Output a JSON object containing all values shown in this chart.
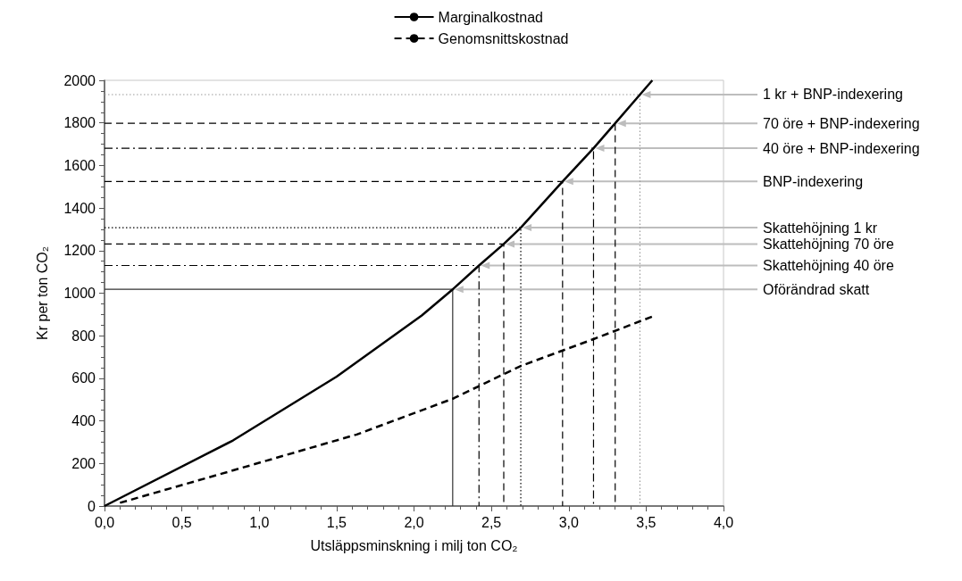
{
  "chart_data": {
    "type": "line",
    "xlabel": "Utsläppsminskning i milj ton CO₂",
    "ylabel": "Kr per ton CO₂",
    "xlim": [
      0,
      4
    ],
    "xticks": [
      {
        "value": 0,
        "label": "0,0"
      },
      {
        "value": 0.5,
        "label": "0,5"
      },
      {
        "value": 1,
        "label": "1,0"
      },
      {
        "value": 1.5,
        "label": "1,5"
      },
      {
        "value": 2,
        "label": "2,0"
      },
      {
        "value": 2.5,
        "label": "2,5"
      },
      {
        "value": 3,
        "label": "3,0"
      },
      {
        "value": 3.5,
        "label": "3,5"
      },
      {
        "value": 4,
        "label": "4,0"
      }
    ],
    "ylim": [
      0,
      2000
    ],
    "yticks": [
      0,
      200,
      400,
      600,
      800,
      1000,
      1200,
      1400,
      1600,
      1800,
      2000
    ],
    "grid": false,
    "legend": "top",
    "marker": "none",
    "series": [
      {
        "name": "Marginalkostnad",
        "color": "#000000",
        "line_style": "solid",
        "x": [
          0,
          0.83,
          1.5,
          2.05,
          2.25,
          2.42,
          2.58,
          2.69,
          2.96,
          3.16,
          3.3,
          3.46,
          3.54
        ],
        "values": [
          0,
          308,
          608,
          895,
          1018,
          1130,
          1231,
          1308,
          1525,
          1681,
          1798,
          1933,
          2000
        ]
      },
      {
        "name": "Genomsnittskostnad",
        "color": "#000000",
        "line_style": "dashed",
        "x": [
          0.1,
          0.8,
          1.63,
          2.25,
          2.69,
          3.16,
          3.55
        ],
        "values": [
          15,
          161,
          336,
          504,
          658,
          784,
          893
        ]
      },
      {
        "color": "#333333",
        "line_style": "solid",
        "x": [
          0,
          2.25,
          2.25
        ],
        "values": [
          1018,
          1018,
          0
        ]
      },
      {
        "color": "#000000",
        "line_style": "dashdot",
        "x": [
          0,
          2.42,
          2.42
        ],
        "values": [
          1130,
          1130,
          0
        ]
      },
      {
        "color": "#000000",
        "line_style": "dashed",
        "x": [
          0,
          2.58,
          2.58
        ],
        "values": [
          1231,
          1231,
          0
        ]
      },
      {
        "color": "#000000",
        "line_style": "dotted",
        "x": [
          0,
          2.69,
          2.69
        ],
        "values": [
          1308,
          1308,
          0
        ]
      },
      {
        "color": "#000000",
        "line_style": "dashed",
        "x": [
          0,
          2.96,
          2.96
        ],
        "values": [
          1525,
          1525,
          0
        ]
      },
      {
        "color": "#000000",
        "line_style": "dashdot",
        "x": [
          0,
          3.16,
          3.16
        ],
        "values": [
          1681,
          1681,
          0
        ]
      },
      {
        "color": "#000000",
        "line_style": "dashed",
        "x": [
          0,
          3.3,
          3.3
        ],
        "values": [
          1798,
          1798,
          0
        ]
      },
      {
        "color": "#999999",
        "line_style": "dotted",
        "x": [
          0,
          3.46,
          3.46
        ],
        "values": [
          1933,
          1933,
          0
        ]
      }
    ],
    "annotations": [
      {
        "text": "1 kr + BNP-indexering",
        "x": 3.46,
        "y": 1933
      },
      {
        "text": "70 öre + BNP-indexering",
        "x": 3.3,
        "y": 1798
      },
      {
        "text": "40 öre + BNP-indexering",
        "x": 3.16,
        "y": 1681
      },
      {
        "text": "BNP-indexering",
        "x": 2.96,
        "y": 1525
      },
      {
        "text": "Skattehöjning 1 kr",
        "x": 2.69,
        "y": 1308
      },
      {
        "text": "Skattehöjning 70 öre",
        "x": 2.58,
        "y": 1231
      },
      {
        "text": "Skattehöjning 40 öre",
        "x": 2.42,
        "y": 1130
      },
      {
        "text": "Oförändrad skatt",
        "x": 2.25,
        "y": 1018
      }
    ]
  }
}
